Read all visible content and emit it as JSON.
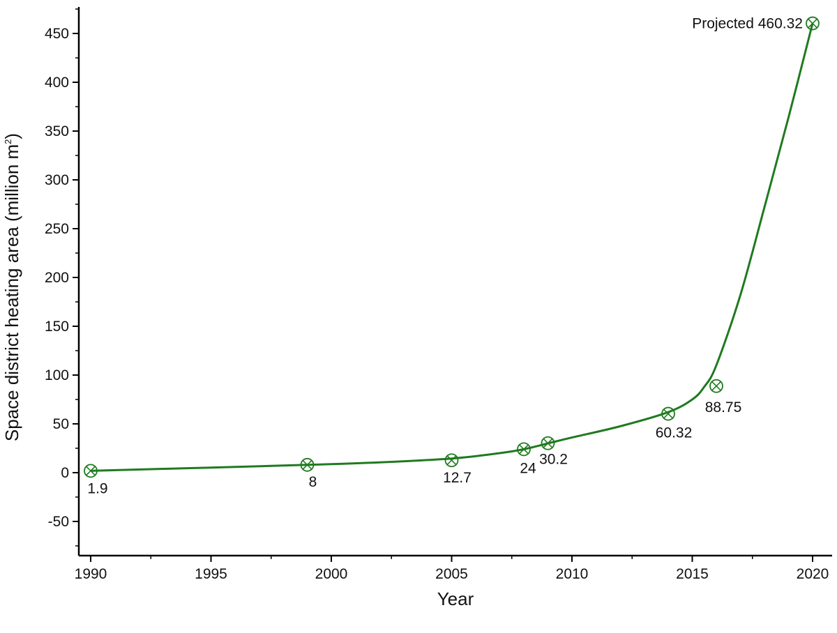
{
  "chart_data": {
    "type": "line",
    "title": "",
    "xlabel": "Year",
    "ylabel": {
      "main": "Space district heating area (million m",
      "sup": "2",
      "end": ")"
    },
    "xlim": [
      1990,
      2020
    ],
    "ylim": [
      -80,
      475
    ],
    "x_ticks": [
      1990,
      1995,
      2000,
      2005,
      2010,
      2015,
      2020
    ],
    "x_tick_labels": [
      "1990",
      "1995",
      "2000",
      "2005",
      "2010",
      "2015",
      "2020"
    ],
    "y_ticks": [
      -50,
      0,
      50,
      100,
      150,
      200,
      250,
      300,
      350,
      400,
      450
    ],
    "y_tick_labels": [
      "-50",
      "0",
      "50",
      "100",
      "150",
      "200",
      "250",
      "300",
      "350",
      "400",
      "450"
    ],
    "grid": false,
    "legend": "none",
    "series": [
      {
        "color": "#1f7a1f",
        "marker": "circled-x",
        "points": [
          {
            "x": 1990,
            "y": 1.9,
            "label": "1.9"
          },
          {
            "x": 1999,
            "y": 8,
            "label": "8"
          },
          {
            "x": 2005,
            "y": 12.7,
            "label": "12.7"
          },
          {
            "x": 2008,
            "y": 24,
            "label": "24"
          },
          {
            "x": 2009,
            "y": 30.2,
            "label": "30.2"
          },
          {
            "x": 2014,
            "y": 60.32,
            "label": "60.32"
          },
          {
            "x": 2016,
            "y": 88.75,
            "label": "88.75"
          },
          {
            "x": 2020,
            "y": 460.32,
            "label": "Projected 460.32"
          }
        ]
      }
    ]
  }
}
